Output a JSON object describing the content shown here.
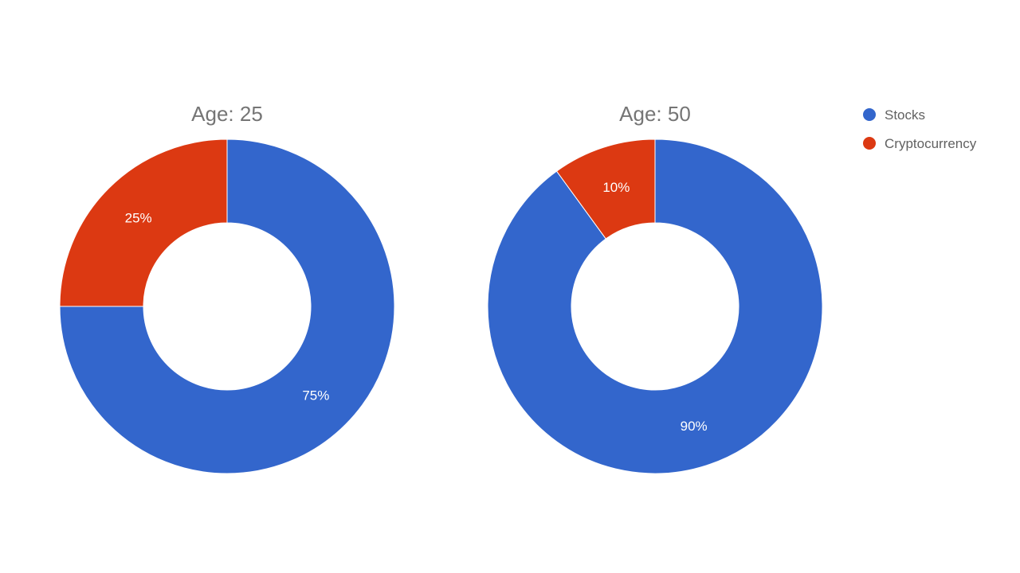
{
  "chart_data": [
    {
      "type": "pie",
      "title": "Age: 25",
      "donut": true,
      "categories": [
        "Stocks",
        "Cryptocurrency"
      ],
      "values": [
        75,
        25
      ],
      "labels": [
        "75%",
        "25%"
      ]
    },
    {
      "type": "pie",
      "title": "Age: 50",
      "donut": true,
      "categories": [
        "Stocks",
        "Cryptocurrency"
      ],
      "values": [
        90,
        10
      ],
      "labels": [
        "90%",
        "10%"
      ]
    }
  ],
  "legend": {
    "placement": "top-right",
    "items": [
      {
        "label": "Stocks",
        "color": "#3366cc"
      },
      {
        "label": "Cryptocurrency",
        "color": "#dc3912"
      }
    ]
  },
  "colors": {
    "Stocks": "#3366cc",
    "Cryptocurrency": "#dc3912",
    "title": "#757575",
    "legend_text": "#616161",
    "background": "#ffffff"
  }
}
